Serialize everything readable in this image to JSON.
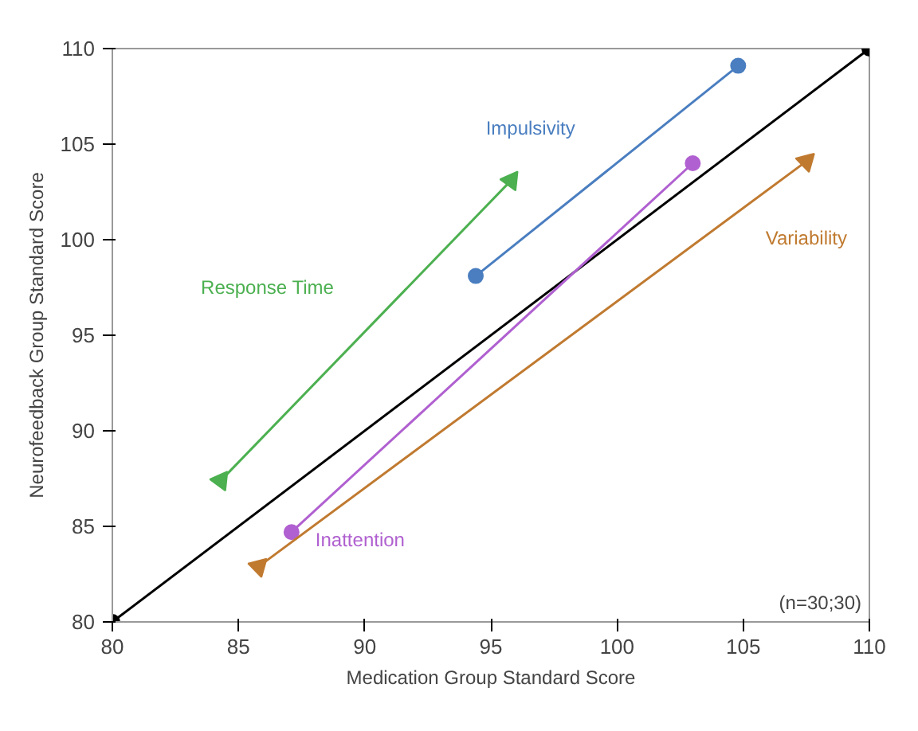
{
  "chart_data": {
    "type": "line",
    "xlabel": "Medication Group Standard Score",
    "ylabel": "Neurofeedback Group Standard Score",
    "xlim": [
      80,
      110
    ],
    "ylim": [
      80,
      110
    ],
    "xticks": [
      80,
      85,
      90,
      95,
      100,
      105,
      110
    ],
    "yticks": [
      80,
      85,
      90,
      95,
      100,
      105,
      110
    ],
    "grid": false,
    "series": [
      {
        "color": "#000000",
        "x": [
          80,
          110
        ],
        "values": [
          80,
          110
        ],
        "marker": "circle"
      },
      {
        "name": "Impulsivity",
        "color": "#4a7ec0",
        "x": [
          94.4,
          104.8
        ],
        "values": [
          98.1,
          109.1
        ],
        "marker": "circle"
      },
      {
        "name": "Response Time",
        "color": "#4cb050",
        "x": [
          84.3,
          95.8
        ],
        "values": [
          87.4,
          103.1
        ],
        "marker": "triangle"
      },
      {
        "name": "Inattention",
        "color": "#b060d0",
        "x": [
          87.1,
          103.0
        ],
        "values": [
          84.7,
          104.0
        ],
        "marker": "circle"
      },
      {
        "name": "Variability",
        "color": "#c07a30",
        "x": [
          85.8,
          107.5
        ],
        "values": [
          82.9,
          104.1
        ],
        "marker": "triangle"
      }
    ],
    "annotations": [
      "(n=30;30)"
    ]
  }
}
